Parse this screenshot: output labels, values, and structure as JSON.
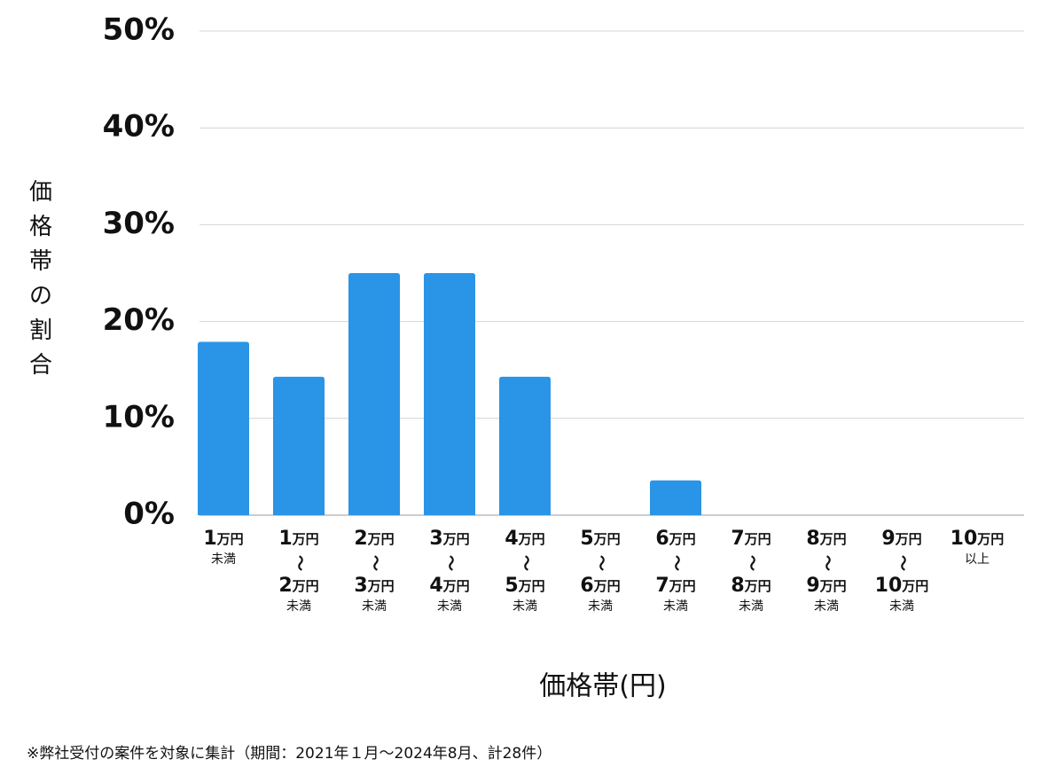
{
  "chart_data": {
    "type": "bar",
    "y_label": "価格帯の割合",
    "x_label": "価格帯(円)",
    "footnote": "※弊社受付の案件を対象に集計（期間：2021年１月〜2024年8月、計28件）",
    "categories": [
      [
        "1万円",
        "未満"
      ],
      [
        "1万円",
        "〜",
        "2万円",
        "未満"
      ],
      [
        "2万円",
        "〜",
        "3万円",
        "未満"
      ],
      [
        "3万円",
        "〜",
        "4万円",
        "未満"
      ],
      [
        "4万円",
        "〜",
        "5万円",
        "未満"
      ],
      [
        "5万円",
        "〜",
        "6万円",
        "未満"
      ],
      [
        "6万円",
        "〜",
        "7万円",
        "未満"
      ],
      [
        "7万円",
        "〜",
        "8万円",
        "未満"
      ],
      [
        "8万円",
        "〜",
        "9万円",
        "未満"
      ],
      [
        "9万円",
        "〜",
        "10万円",
        "未満"
      ],
      [
        "10万円",
        "以上"
      ]
    ],
    "values": [
      17.9,
      14.3,
      25,
      25,
      14.3,
      0,
      3.6,
      0,
      0,
      0,
      0
    ],
    "color": "#2a94e6",
    "ylim": [
      0,
      50
    ],
    "yticks": [
      {
        "value": 0,
        "label": "0%"
      },
      {
        "value": 10,
        "label": "10%"
      },
      {
        "value": 20,
        "label": "20%"
      },
      {
        "value": 30,
        "label": "30%"
      },
      {
        "value": 40,
        "label": "40%"
      },
      {
        "value": 50,
        "label": "50%"
      }
    ],
    "grid": true
  }
}
